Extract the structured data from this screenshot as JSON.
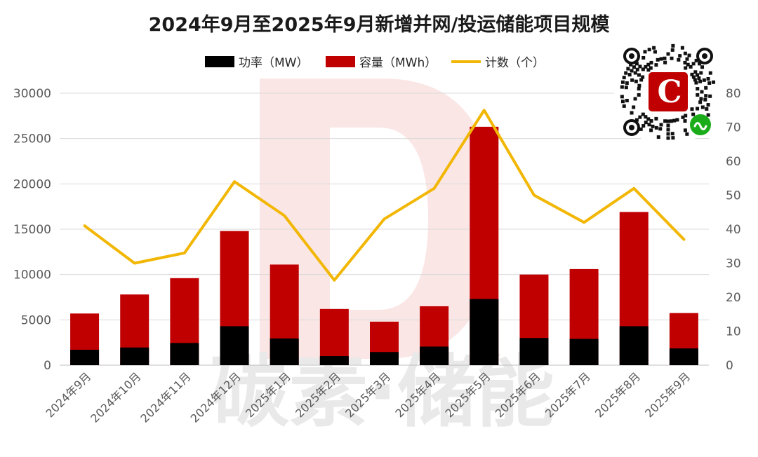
{
  "chart_data": {
    "type": "bar",
    "title": "2024年9月至2025年9月新增并网/投运储能项目规模",
    "categories": [
      "2024年9月",
      "2024年10月",
      "2024年11月",
      "2024年12月",
      "2025年1月",
      "2025年2月",
      "2025年3月",
      "2025年4月",
      "2025年5月",
      "2025年6月",
      "2025年7月",
      "2025年8月",
      "2025年9月"
    ],
    "series": [
      {
        "name": "功率（MW）",
        "kind": "bar",
        "axis": "left",
        "color": "#000000",
        "values": [
          1700,
          1950,
          2450,
          4300,
          2950,
          1000,
          1450,
          2050,
          7300,
          3000,
          2900,
          4300,
          1850
        ]
      },
      {
        "name": "容量（MWh）",
        "kind": "bar",
        "axis": "left",
        "color": "#c00000",
        "values": [
          5700,
          7800,
          9600,
          14800,
          11100,
          6200,
          4800,
          6500,
          26300,
          10000,
          10600,
          16900,
          5750
        ]
      },
      {
        "name": "计数（个）",
        "kind": "line",
        "axis": "right",
        "color": "#f2b705",
        "values": [
          41,
          30,
          33,
          54,
          44,
          25,
          43,
          52,
          75,
          50,
          42,
          52,
          37
        ]
      }
    ],
    "ylim_left": [
      0,
      30000
    ],
    "yticks_left": [
      "0",
      "5000",
      "10000",
      "15000",
      "20000",
      "25000",
      "30000"
    ],
    "ylim_right": [
      0,
      80
    ],
    "yticks_right": [
      "0",
      "10",
      "20",
      "30",
      "40",
      "50",
      "60",
      "70",
      "80"
    ],
    "grid": true,
    "legend_position": "top-center",
    "bars_overlapping": true
  },
  "watermark": {
    "text": "碳素·储能",
    "logo_letter": "D"
  },
  "qr_badge": {
    "logo_letter": "C",
    "icon": "mini-program-icon"
  }
}
